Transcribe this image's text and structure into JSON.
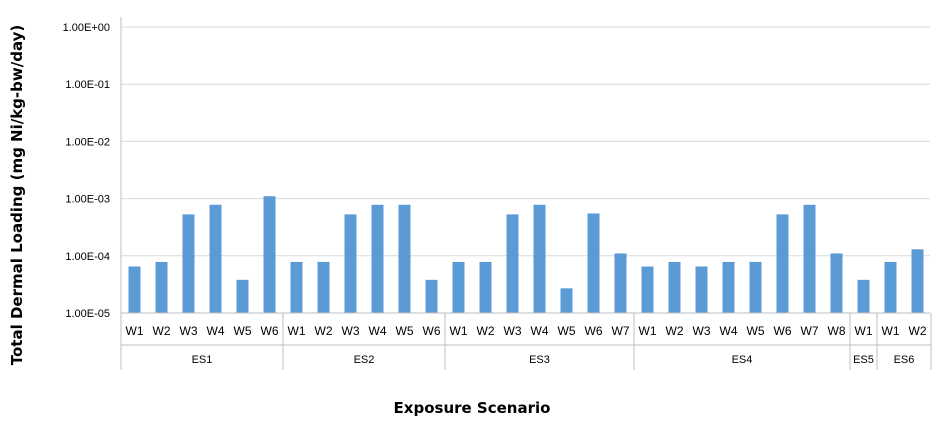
{
  "chart_data": {
    "type": "bar",
    "xlabel": "Exposure Scenario",
    "ylabel": "Total Dermal Loading (mg Ni/kg-bw/day)",
    "yscale": "log",
    "ylim": [
      1e-05,
      1
    ],
    "y_ticks": [
      "1.00E-05",
      "1.00E-04",
      "1.00E-03",
      "1.00E-02",
      "1.00E-01",
      "1.00E+00"
    ],
    "grid": true,
    "legend": "none",
    "bar_color": "#5b9bd5",
    "groups": [
      {
        "name": "ES1",
        "categories": [
          "W1",
          "W2",
          "W3",
          "W4",
          "W5",
          "W6"
        ],
        "values": [
          6.5e-05,
          7.8e-05,
          0.00053,
          0.00078,
          3.8e-05,
          0.0011
        ]
      },
      {
        "name": "ES2",
        "categories": [
          "W1",
          "W2",
          "W3",
          "W4",
          "W5",
          "W6"
        ],
        "values": [
          7.8e-05,
          7.8e-05,
          0.00053,
          0.00078,
          0.00078,
          3.8e-05
        ]
      },
      {
        "name": "ES3",
        "categories": [
          "W1",
          "W2",
          "W3",
          "W4",
          "W5",
          "W6",
          "W7"
        ],
        "values": [
          7.8e-05,
          7.8e-05,
          0.00053,
          0.00078,
          2.7e-05,
          0.00055,
          0.00011
        ]
      },
      {
        "name": "ES4",
        "categories": [
          "W1",
          "W2",
          "W3",
          "W4",
          "W5",
          "W6",
          "W7",
          "W8"
        ],
        "values": [
          6.5e-05,
          7.8e-05,
          6.5e-05,
          7.8e-05,
          7.8e-05,
          0.00053,
          0.00078,
          0.00011
        ]
      },
      {
        "name": "ES5",
        "categories": [
          "W1"
        ],
        "values": [
          3.8e-05
        ]
      },
      {
        "name": "ES6",
        "categories": [
          "W1",
          "W2"
        ],
        "values": [
          7.8e-05,
          0.00013
        ]
      }
    ]
  }
}
